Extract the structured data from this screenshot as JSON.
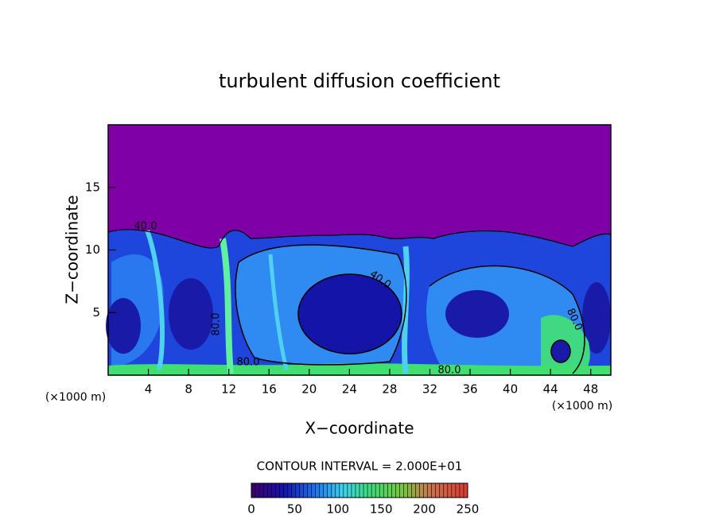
{
  "chart_data": {
    "type": "contour",
    "title": "turbulent diffusion coefficient",
    "x_label": "X−coordinate",
    "y_label": "Z−coordinate",
    "x_unit_label": "(×1000 m)",
    "xlim": [
      0,
      50
    ],
    "ylim": [
      0,
      20
    ],
    "xticks": [
      4,
      8,
      12,
      16,
      20,
      24,
      28,
      32,
      36,
      40,
      44,
      48
    ],
    "yticks": [
      5,
      10,
      15
    ],
    "contour_interval_label": "CONTOUR INTERVAL = 2.000E+01",
    "colorbar": {
      "lim": [
        0,
        250
      ],
      "ticks": [
        0,
        50,
        100,
        150,
        200,
        250
      ]
    },
    "contour_labels": [
      {
        "value": 40,
        "label": "40.0"
      },
      {
        "value": 40,
        "label": "40.0"
      },
      {
        "value": 80,
        "label": "80.0"
      },
      {
        "value": 80,
        "label": "80.0"
      },
      {
        "value": 80,
        "label": "80.0"
      },
      {
        "value": 80,
        "label": "80.0"
      }
    ]
  }
}
